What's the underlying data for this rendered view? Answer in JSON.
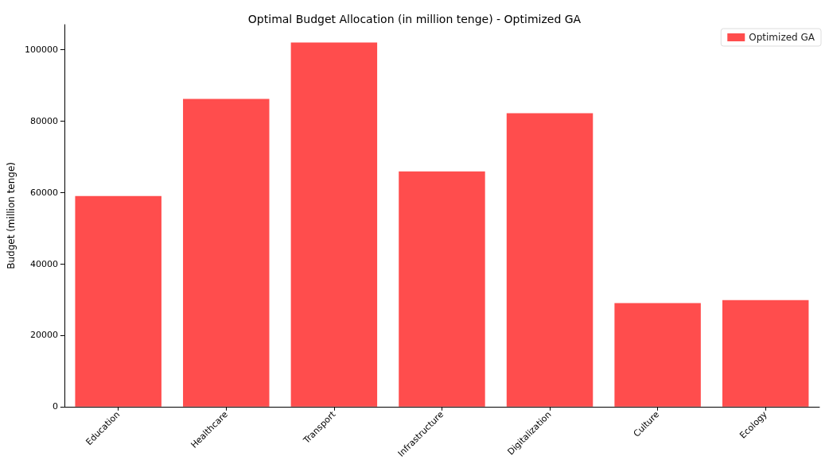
{
  "chart_data": {
    "type": "bar",
    "title": "Optimal Budget Allocation (in million tenge) - Optimized GA",
    "ylabel": "Budget (million tenge)",
    "categories": [
      "Education",
      "Healthcare",
      "Transport",
      "Infrastructure",
      "Digitalization",
      "Culture",
      "Ecology"
    ],
    "series": [
      {
        "name": "Optimized GA",
        "color": "#ff4d4d",
        "values": [
          59000,
          86200,
          102000,
          65900,
          82200,
          29000,
          29800
        ]
      }
    ],
    "ylim": [
      0,
      107000
    ],
    "yticks": [
      0,
      20000,
      40000,
      60000,
      80000,
      100000
    ],
    "legend": "top right",
    "grid": false
  }
}
